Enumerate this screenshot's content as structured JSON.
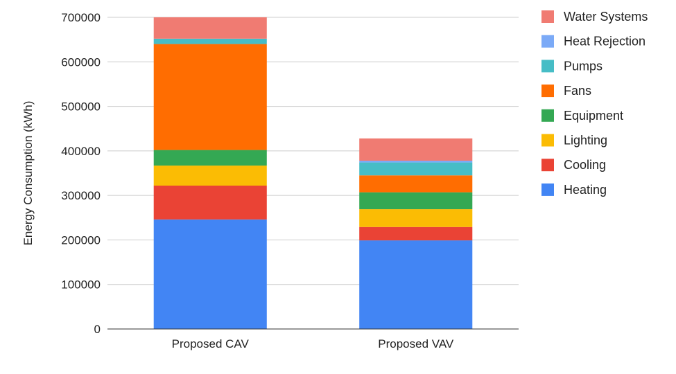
{
  "chart_data": {
    "type": "bar",
    "stacked": true,
    "title": "",
    "xlabel": "",
    "ylabel": "Energy Consumption (kWh)",
    "ylim": [
      0,
      700000
    ],
    "yticks": [
      "0",
      "100000",
      "200000",
      "300000",
      "400000",
      "500000",
      "600000",
      "700000"
    ],
    "grid": true,
    "legend_position": "right",
    "categories": [
      "Proposed CAV",
      "Proposed VAV"
    ],
    "series": [
      {
        "name": "Heating",
        "color": "#4285F4",
        "values": [
          246000,
          199000
        ]
      },
      {
        "name": "Cooling",
        "color": "#EA4335",
        "values": [
          76000,
          30000
        ]
      },
      {
        "name": "Lighting",
        "color": "#FBBC04",
        "values": [
          45000,
          40000
        ]
      },
      {
        "name": "Equipment",
        "color": "#34A853",
        "values": [
          35000,
          38000
        ]
      },
      {
        "name": "Fans",
        "color": "#FF6D01",
        "values": [
          238000,
          38000
        ]
      },
      {
        "name": "Pumps",
        "color": "#46BDC6",
        "values": [
          12000,
          29000
        ]
      },
      {
        "name": "Heat Rejection",
        "color": "#7BAAF7",
        "values": [
          0,
          4000
        ]
      },
      {
        "name": "Water Systems",
        "color": "#F07B72",
        "values": [
          48000,
          50000
        ]
      }
    ]
  }
}
